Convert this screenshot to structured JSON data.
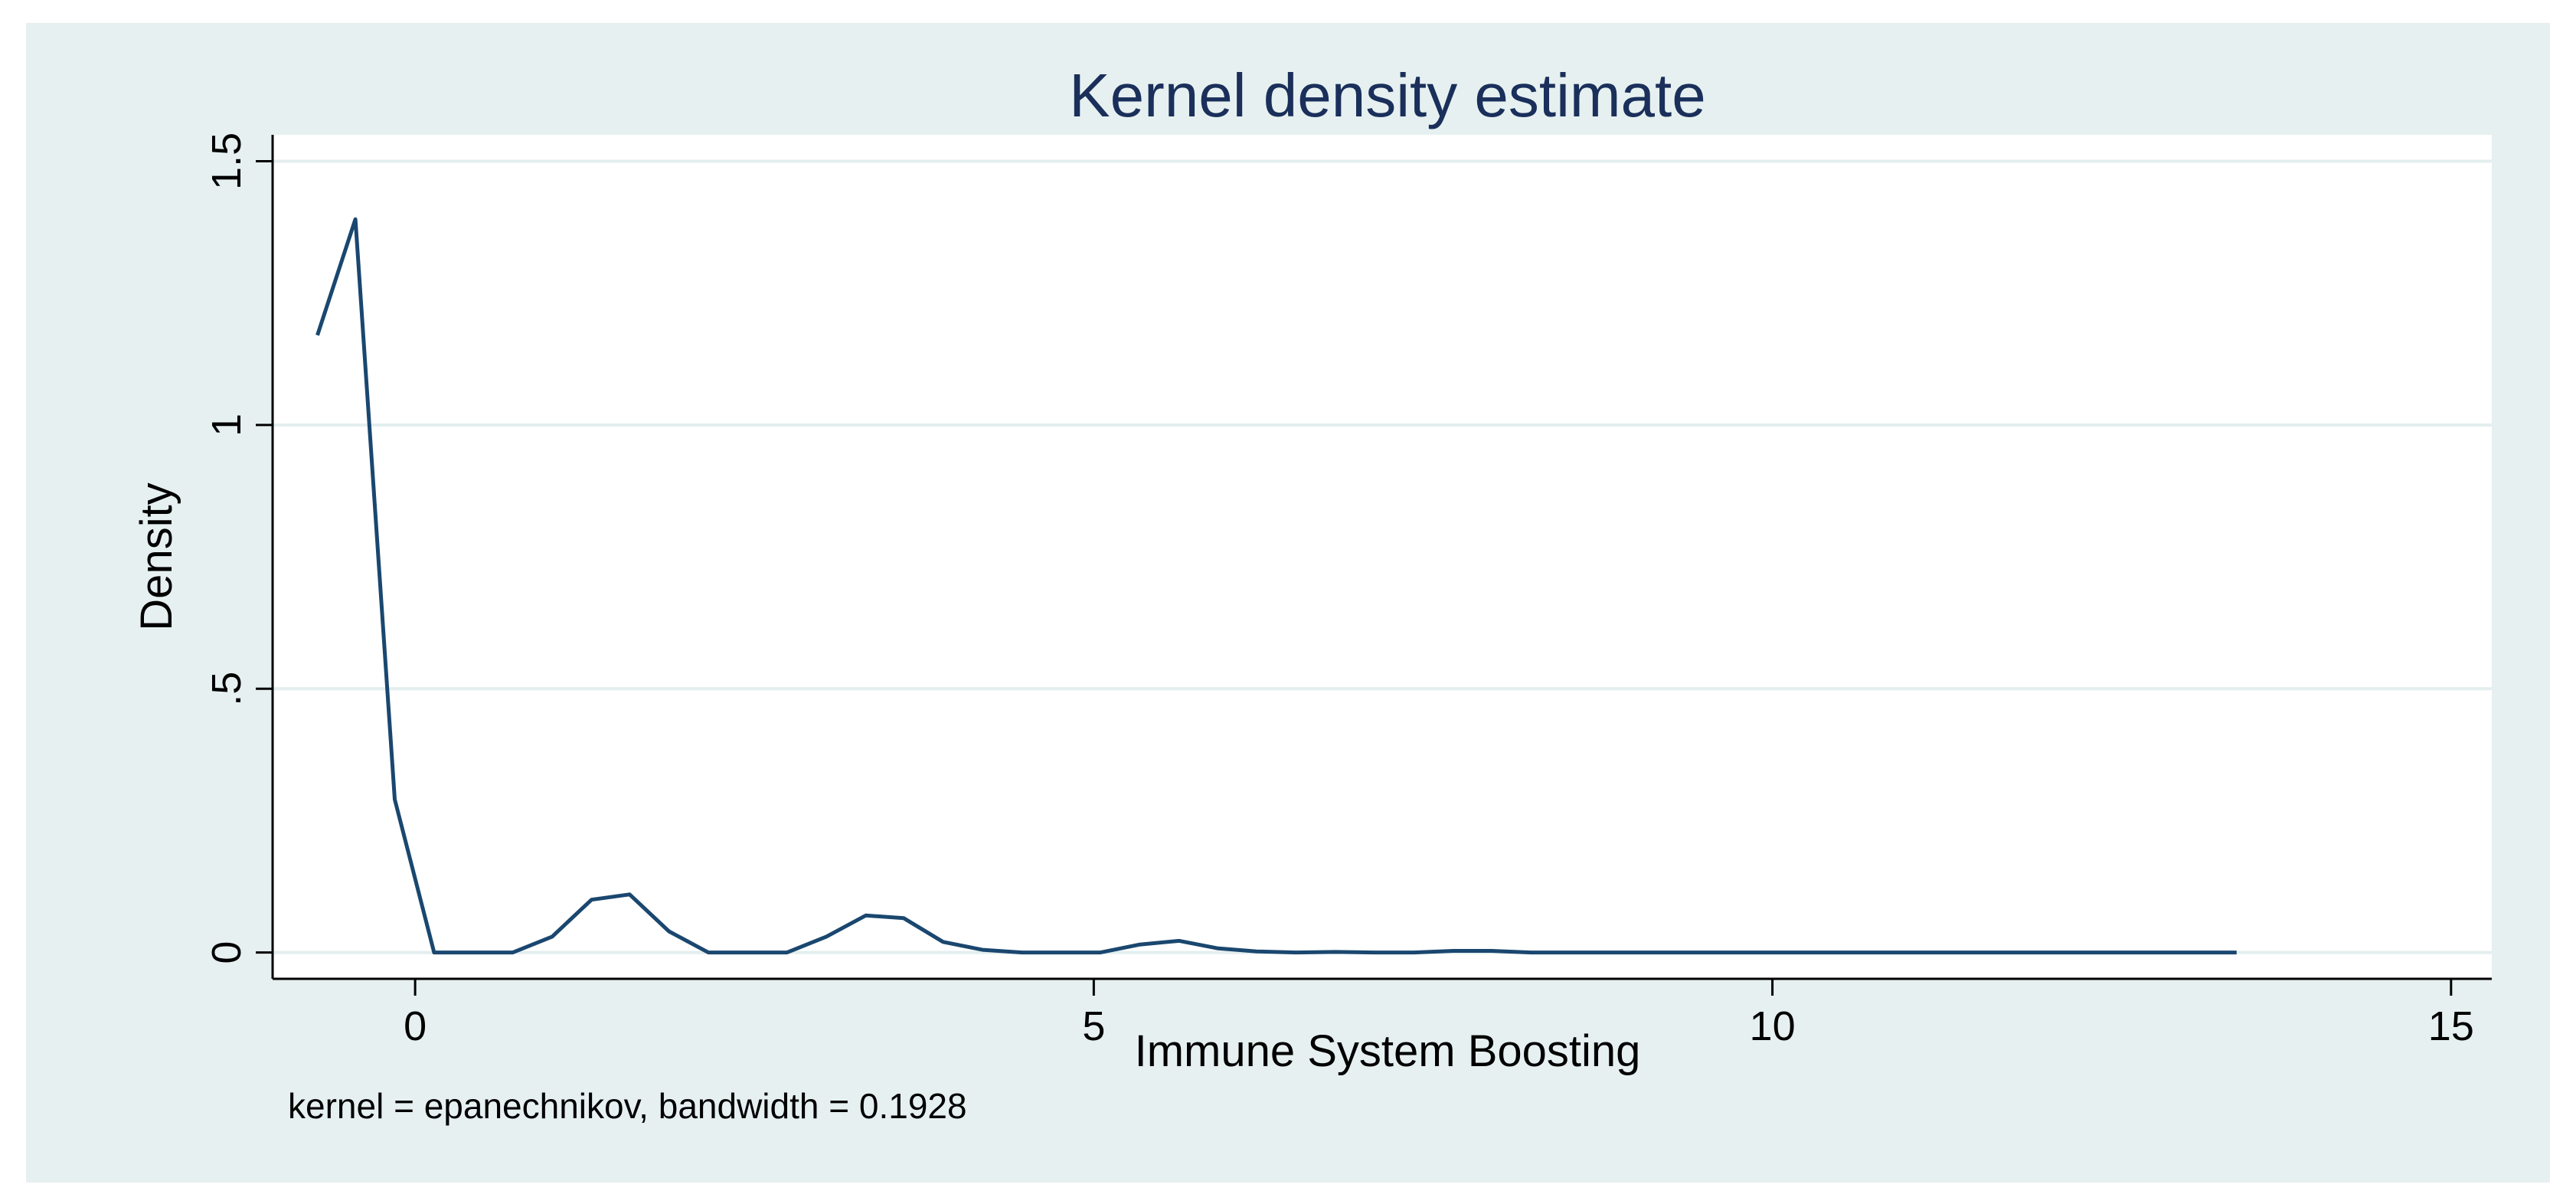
{
  "chart_data": {
    "type": "line",
    "title": "Kernel density estimate",
    "xlabel": "Immune System Boosting",
    "ylabel": "Density",
    "note": "kernel = epanechnikov, bandwidth = 0.1928",
    "xlim": [
      -1.05,
      15.3
    ],
    "ylim": [
      -0.05,
      1.55
    ],
    "xticks": [
      0,
      5,
      10,
      15
    ],
    "xtick_labels": [
      "0",
      "5",
      "10",
      "15"
    ],
    "yticks": [
      0,
      0.5,
      1,
      1.5
    ],
    "ytick_labels": [
      "0",
      ".5",
      "1",
      "1.5"
    ],
    "grid": true,
    "line_color": "#1a476f",
    "series": [
      {
        "x": [
          -0.72,
          -0.44,
          -0.15,
          0.14,
          0.43,
          0.72,
          1.01,
          1.3,
          1.58,
          1.87,
          2.16,
          2.45,
          2.74,
          3.03,
          3.32,
          3.6,
          3.89,
          4.18,
          4.47,
          4.76,
          5.05,
          5.34,
          5.63,
          5.91,
          6.2,
          6.49,
          6.78,
          7.07,
          7.36,
          7.65,
          7.93,
          8.22,
          8.51,
          8.8,
          9.09,
          9.38,
          9.67,
          9.95,
          10.24,
          10.53,
          10.82,
          11.11,
          11.4,
          11.69,
          11.97,
          12.26,
          12.55,
          12.84,
          13.13,
          13.42
        ],
        "y": [
          1.17,
          1.39,
          0.29,
          0.0,
          0.0,
          0.0,
          0.03,
          0.1,
          0.11,
          0.04,
          0.0,
          0.0,
          0.0,
          0.03,
          0.07,
          0.065,
          0.02,
          0.005,
          0.0,
          0.0,
          0.0,
          0.015,
          0.022,
          0.008,
          0.002,
          0.0,
          0.001,
          0.0,
          0.0,
          0.003,
          0.003,
          0.0,
          0.0,
          0.0,
          0.0,
          0.0,
          0.0,
          0.0,
          0.0,
          0.0,
          0.0,
          0.0,
          0.0,
          0.0,
          0.0,
          0.0,
          0.0,
          0.0,
          0.0,
          0.0
        ]
      }
    ]
  }
}
